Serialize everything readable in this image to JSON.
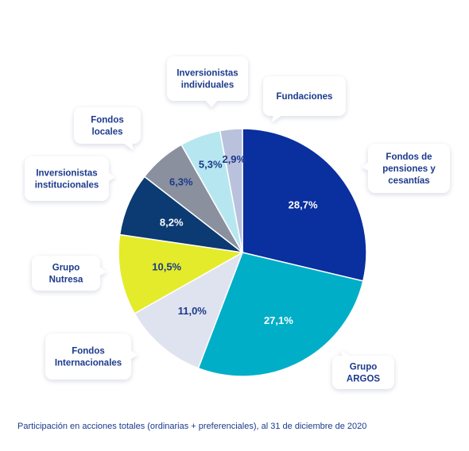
{
  "chart_data": {
    "type": "pie",
    "categories": [
      "Fondos de pensiones y cesantías",
      "Grupo ARGOS",
      "Fondos Internacionales",
      "Grupo Nutresa",
      "Inversionistas institucionales",
      "Fondos locales",
      "Inversionistas individuales",
      "Fundaciones"
    ],
    "callout_lines": [
      [
        "Fondos de",
        "pensiones y",
        "cesantías"
      ],
      [
        "Grupo",
        "ARGOS"
      ],
      [
        "Fondos",
        "Internacionales"
      ],
      [
        "Grupo",
        "Nutresa"
      ],
      [
        "Inversionistas",
        "institucionales"
      ],
      [
        "Fondos",
        "locales"
      ],
      [
        "Inversionistas",
        "individuales"
      ],
      [
        "Fundaciones"
      ]
    ],
    "values": [
      28.7,
      27.1,
      11.0,
      10.5,
      8.2,
      6.3,
      5.3,
      2.9
    ],
    "value_labels": [
      "28,7%",
      "27,1%",
      "11,0%",
      "10,5%",
      "8,2%",
      "6,3%",
      "5,3%",
      "2,9%"
    ],
    "colors": [
      "#0a2f9e",
      "#00aec8",
      "#dfe3ef",
      "#e4eb2a",
      "#0c3a72",
      "#8a909d",
      "#b6e7f0",
      "#b9c1dc"
    ],
    "label_colors": [
      "#ffffff",
      "#ffffff",
      "#1b3a8c",
      "#1b3a8c",
      "#ffffff",
      "#1b3a8c",
      "#1b3a8c",
      "#1b3a8c"
    ],
    "footnote": "Participación en acciones totales (ordinarias + preferenciales), al 31 de diciembre de 2020"
  }
}
